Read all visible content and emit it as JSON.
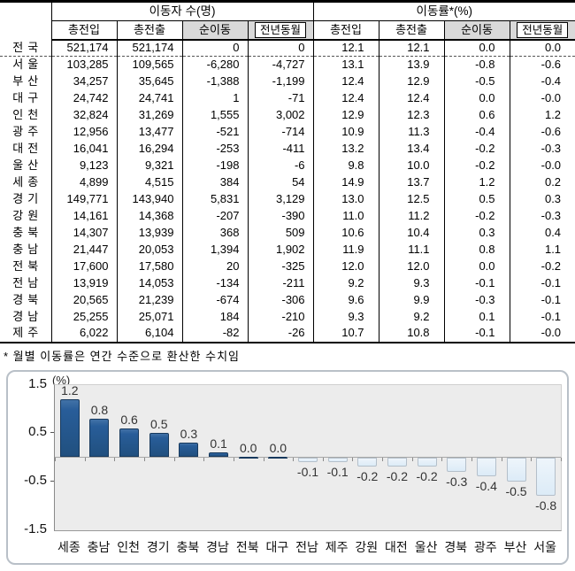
{
  "table": {
    "group_headers": [
      "이동자 수(명)",
      "이동률*(%)"
    ],
    "columns": [
      "총전입",
      "총전출",
      "순이동",
      "전년동월"
    ],
    "rows": [
      {
        "region": "전국",
        "values": [
          "521,174",
          "521,174",
          "0",
          "0",
          "12.1",
          "12.1",
          "0.0",
          "0.0"
        ]
      },
      {
        "region": "서울",
        "values": [
          "103,285",
          "109,565",
          "-6,280",
          "-4,727",
          "13.1",
          "13.9",
          "-0.8",
          "-0.6"
        ]
      },
      {
        "region": "부산",
        "values": [
          "34,257",
          "35,645",
          "-1,388",
          "-1,199",
          "12.4",
          "12.9",
          "-0.5",
          "-0.4"
        ]
      },
      {
        "region": "대구",
        "values": [
          "24,742",
          "24,741",
          "1",
          "-71",
          "12.4",
          "12.4",
          "0.0",
          "-0.0"
        ]
      },
      {
        "region": "인천",
        "values": [
          "32,824",
          "31,269",
          "1,555",
          "3,002",
          "12.9",
          "12.3",
          "0.6",
          "1.2"
        ]
      },
      {
        "region": "광주",
        "values": [
          "12,956",
          "13,477",
          "-521",
          "-714",
          "10.9",
          "11.3",
          "-0.4",
          "-0.6"
        ]
      },
      {
        "region": "대전",
        "values": [
          "16,041",
          "16,294",
          "-253",
          "-411",
          "13.2",
          "13.4",
          "-0.2",
          "-0.3"
        ]
      },
      {
        "region": "울산",
        "values": [
          "9,123",
          "9,321",
          "-198",
          "-6",
          "9.8",
          "10.0",
          "-0.2",
          "-0.0"
        ]
      },
      {
        "region": "세종",
        "values": [
          "4,899",
          "4,515",
          "384",
          "54",
          "14.9",
          "13.7",
          "1.2",
          "0.2"
        ]
      },
      {
        "region": "경기",
        "values": [
          "149,771",
          "143,940",
          "5,831",
          "3,129",
          "13.0",
          "12.5",
          "0.5",
          "0.3"
        ]
      },
      {
        "region": "강원",
        "values": [
          "14,161",
          "14,368",
          "-207",
          "-390",
          "11.0",
          "11.2",
          "-0.2",
          "-0.3"
        ]
      },
      {
        "region": "충북",
        "values": [
          "14,307",
          "13,939",
          "368",
          "509",
          "10.6",
          "10.4",
          "0.3",
          "0.4"
        ]
      },
      {
        "region": "충남",
        "values": [
          "21,447",
          "20,053",
          "1,394",
          "1,902",
          "11.9",
          "11.1",
          "0.8",
          "1.1"
        ]
      },
      {
        "region": "전북",
        "values": [
          "17,600",
          "17,580",
          "20",
          "-325",
          "12.0",
          "12.0",
          "0.0",
          "-0.2"
        ]
      },
      {
        "region": "전남",
        "values": [
          "13,919",
          "14,053",
          "-134",
          "-211",
          "9.2",
          "9.3",
          "-0.1",
          "-0.1"
        ]
      },
      {
        "region": "경북",
        "values": [
          "20,565",
          "21,239",
          "-674",
          "-306",
          "9.6",
          "9.9",
          "-0.3",
          "-0.1"
        ]
      },
      {
        "region": "경남",
        "values": [
          "25,255",
          "25,071",
          "184",
          "-210",
          "9.3",
          "9.2",
          "0.1",
          "-0.1"
        ]
      },
      {
        "region": "제주",
        "values": [
          "6,022",
          "6,104",
          "-82",
          "-26",
          "10.7",
          "10.8",
          "-0.1",
          "-0.0"
        ]
      }
    ]
  },
  "footnote": "* 월별 이동률은 연간 수준으로 환산한 수치임",
  "chart_data": {
    "type": "bar",
    "unit_label": "(%)",
    "categories": [
      "세종",
      "충남",
      "인천",
      "경기",
      "충북",
      "경남",
      "전북",
      "대구",
      "전남",
      "제주",
      "강원",
      "대전",
      "울산",
      "경북",
      "광주",
      "부산",
      "서울"
    ],
    "values": [
      1.2,
      0.8,
      0.6,
      0.5,
      0.3,
      0.1,
      0.0,
      0.0,
      -0.1,
      -0.1,
      -0.2,
      -0.2,
      -0.2,
      -0.3,
      -0.4,
      -0.5,
      -0.8
    ],
    "value_labels": [
      "1.2",
      "0.8",
      "0.6",
      "0.5",
      "0.3",
      "0.1",
      "0.0",
      "0.0",
      "-0.1",
      "-0.1",
      "-0.2",
      "-0.2",
      "-0.2",
      "-0.3",
      "-0.4",
      "-0.5",
      "-0.8"
    ],
    "ylim": [
      -1.5,
      1.5
    ],
    "yticks": [
      1.5,
      0.5,
      -0.5,
      -1.5
    ],
    "ytick_labels": [
      "1.5",
      "0.5",
      "-0.5",
      "-1.5"
    ],
    "grid": false,
    "legend": false,
    "positive_color": "#265a96",
    "negative_color": "#dcebf7",
    "plot_bg": "#ececec"
  }
}
